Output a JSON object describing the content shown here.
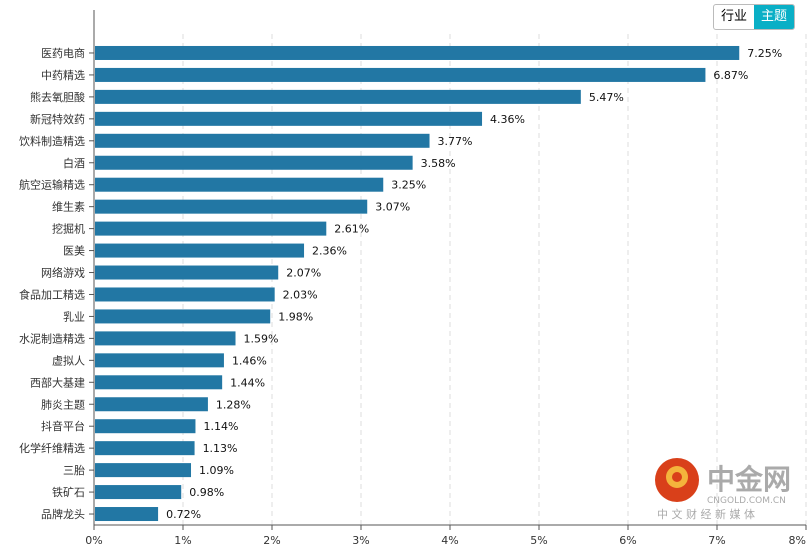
{
  "toggle": {
    "options": [
      "行业",
      "主题"
    ],
    "active": "主题"
  },
  "colors": {
    "bar": "#2277a4",
    "toggle_active": "#0aafc6"
  },
  "watermark": {
    "brand": "中金网",
    "domain": "CNGOLD.COM.CN",
    "slogan": "中 文 财 经 新 媒 体"
  },
  "chart_data": {
    "type": "bar",
    "orientation": "horizontal",
    "categories": [
      "医药电商",
      "中药精选",
      "熊去氧胆酸",
      "新冠特效药",
      "饮料制造精选",
      "白酒",
      "航空运输精选",
      "维生素",
      "挖掘机",
      "医美",
      "网络游戏",
      "食品加工精选",
      "乳业",
      "水泥制造精选",
      "虚拟人",
      "西部大基建",
      "肺炎主题",
      "抖音平台",
      "化学纤维精选",
      "三胎",
      "铁矿石",
      "品牌龙头"
    ],
    "values": [
      7.25,
      6.87,
      5.47,
      4.36,
      3.77,
      3.58,
      3.25,
      3.07,
      2.61,
      2.36,
      2.07,
      2.03,
      1.98,
      1.59,
      1.46,
      1.44,
      1.28,
      1.14,
      1.13,
      1.09,
      0.98,
      0.72
    ],
    "value_labels": [
      "7.25%",
      "6.87%",
      "5.47%",
      "4.36%",
      "3.77%",
      "3.58%",
      "3.25%",
      "3.07%",
      "2.61%",
      "2.36%",
      "2.07%",
      "2.03%",
      "1.98%",
      "1.59%",
      "1.46%",
      "1.44%",
      "1.28%",
      "1.14%",
      "1.13%",
      "1.09%",
      "0.98%",
      "0.72%"
    ],
    "xlim": [
      0,
      8
    ],
    "xticks": [
      "0%",
      "1%",
      "2%",
      "3%",
      "4%",
      "5%",
      "6%",
      "7%",
      "8%"
    ],
    "grid": "vertical dashed",
    "title": "",
    "xlabel": "",
    "ylabel": ""
  }
}
